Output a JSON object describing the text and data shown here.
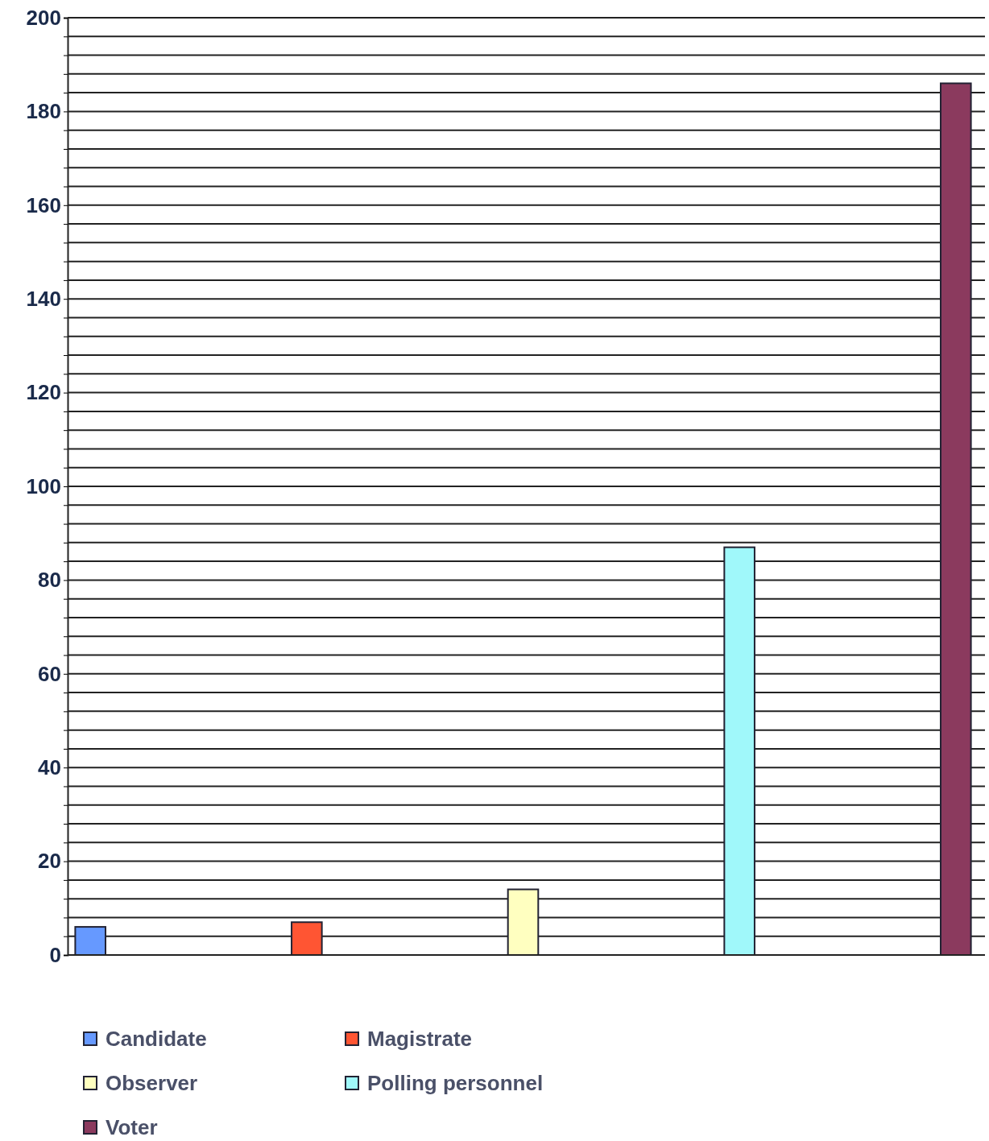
{
  "chart_data": {
    "type": "bar",
    "categories": [
      null
    ],
    "series": [
      {
        "name": "Candidate",
        "color": "#6699ff",
        "values": [
          6
        ]
      },
      {
        "name": "Magistrate",
        "color": "#ff5533",
        "values": [
          7
        ]
      },
      {
        "name": "Observer",
        "color": "#ffffc0",
        "values": [
          14
        ]
      },
      {
        "name": "Polling personnel",
        "color": "#a0f8fa",
        "values": [
          87
        ]
      },
      {
        "name": "Voter",
        "color": "#8b3a5e",
        "values": [
          186
        ]
      }
    ],
    "ylim": [
      0,
      200
    ],
    "yticks": [
      0,
      {
        "value": 4,
        "label": null
      },
      {
        "value": 8,
        "label": null
      },
      {
        "value": 12,
        "label": null
      },
      {
        "value": 16,
        "label": null
      },
      20,
      {
        "value": 24,
        "label": null
      },
      {
        "value": 28,
        "label": null
      },
      {
        "value": 32,
        "label": null
      },
      {
        "value": 36,
        "label": null
      },
      40,
      {
        "value": 44,
        "label": null
      },
      {
        "value": 48,
        "label": null
      },
      {
        "value": 52,
        "label": null
      },
      {
        "value": 56,
        "label": null
      },
      60,
      {
        "value": 64,
        "label": null
      },
      {
        "value": 68,
        "label": null
      },
      {
        "value": 72,
        "label": null
      },
      {
        "value": 76,
        "label": null
      },
      80,
      {
        "value": 84,
        "label": null
      },
      {
        "value": 88,
        "label": null
      },
      {
        "value": 92,
        "label": null
      },
      {
        "value": 96,
        "label": null
      },
      100,
      {
        "value": 104,
        "label": null
      },
      {
        "value": 108,
        "label": null
      },
      {
        "value": 112,
        "label": null
      },
      {
        "value": 116,
        "label": null
      },
      120,
      {
        "value": 124,
        "label": null
      },
      {
        "value": 128,
        "label": null
      },
      {
        "value": 132,
        "label": null
      },
      {
        "value": 136,
        "label": null
      },
      140,
      {
        "value": 144,
        "label": null
      },
      {
        "value": 148,
        "label": null
      },
      {
        "value": 152,
        "label": null
      },
      {
        "value": 156,
        "label": null
      },
      160,
      {
        "value": 164,
        "label": null
      },
      {
        "value": 168,
        "label": null
      },
      {
        "value": 172,
        "label": null
      },
      {
        "value": 176,
        "label": null
      },
      180,
      {
        "value": 184,
        "label": null
      },
      {
        "value": 188,
        "label": null
      },
      {
        "value": 192,
        "label": null
      },
      {
        "value": 196,
        "label": null
      },
      200
    ],
    "grid": "y",
    "legend": "bottom"
  }
}
